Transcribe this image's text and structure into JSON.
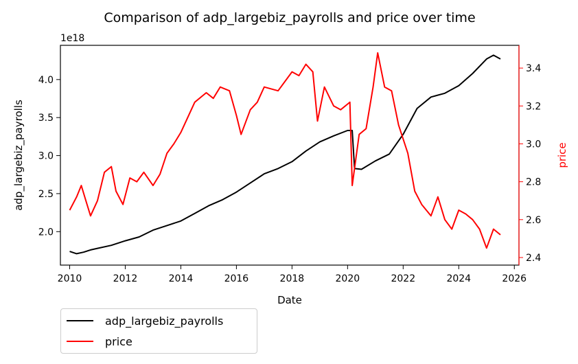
{
  "chart_data": {
    "type": "line",
    "title": "Comparison of adp_largebiz_payrolls and price over time",
    "xlabel": "Date",
    "x_ticks": [
      "2010",
      "2012",
      "2014",
      "2016",
      "2018",
      "2020",
      "2022",
      "2024",
      "2026"
    ],
    "xlim": [
      "2009-09",
      "2026-03"
    ],
    "left_axis": {
      "label": "adp_largebiz_payrolls",
      "offset_text": "1e18",
      "ylim": [
        1.56,
        4.45
      ],
      "ticks": [
        "2.0",
        "2.5",
        "3.0",
        "3.5",
        "4.0"
      ],
      "tick_values": [
        2.0,
        2.5,
        3.0,
        3.5,
        4.0
      ],
      "color": "#000000"
    },
    "right_axis": {
      "label": "price",
      "ylim": [
        2.36,
        3.52
      ],
      "ticks": [
        "2.4",
        "2.6",
        "2.8",
        "3.0",
        "3.2",
        "3.4"
      ],
      "tick_values": [
        2.4,
        2.6,
        2.8,
        3.0,
        3.2,
        3.4
      ],
      "color": "#ff0000"
    },
    "series": [
      {
        "name": "adp_largebiz_payrolls",
        "axis": "left",
        "color": "#000000",
        "points": [
          [
            "2010-01",
            1.74
          ],
          [
            "2010-04",
            1.71
          ],
          [
            "2010-07",
            1.73
          ],
          [
            "2010-10",
            1.76
          ],
          [
            "2011-01",
            1.78
          ],
          [
            "2011-07",
            1.82
          ],
          [
            "2012-01",
            1.88
          ],
          [
            "2012-07",
            1.93
          ],
          [
            "2013-01",
            2.02
          ],
          [
            "2013-07",
            2.08
          ],
          [
            "2014-01",
            2.14
          ],
          [
            "2014-07",
            2.24
          ],
          [
            "2015-01",
            2.34
          ],
          [
            "2015-07",
            2.42
          ],
          [
            "2016-01",
            2.52
          ],
          [
            "2016-07",
            2.64
          ],
          [
            "2017-01",
            2.76
          ],
          [
            "2017-07",
            2.83
          ],
          [
            "2018-01",
            2.92
          ],
          [
            "2018-07",
            3.06
          ],
          [
            "2019-01",
            3.18
          ],
          [
            "2019-07",
            3.26
          ],
          [
            "2020-01",
            3.33
          ],
          [
            "2020-03",
            3.33
          ],
          [
            "2020-04",
            2.83
          ],
          [
            "2020-07",
            2.82
          ],
          [
            "2021-01",
            2.93
          ],
          [
            "2021-07",
            3.02
          ],
          [
            "2022-01",
            3.28
          ],
          [
            "2022-07",
            3.62
          ],
          [
            "2023-01",
            3.77
          ],
          [
            "2023-07",
            3.82
          ],
          [
            "2024-01",
            3.92
          ],
          [
            "2024-07",
            4.08
          ],
          [
            "2025-01",
            4.27
          ],
          [
            "2025-04",
            4.32
          ],
          [
            "2025-07",
            4.27
          ]
        ]
      },
      {
        "name": "price",
        "axis": "right",
        "color": "#ff0000",
        "points": [
          [
            "2010-01",
            2.65
          ],
          [
            "2010-04",
            2.72
          ],
          [
            "2010-06",
            2.78
          ],
          [
            "2010-08",
            2.7
          ],
          [
            "2010-10",
            2.62
          ],
          [
            "2011-01",
            2.7
          ],
          [
            "2011-04",
            2.85
          ],
          [
            "2011-07",
            2.88
          ],
          [
            "2011-09",
            2.75
          ],
          [
            "2011-12",
            2.68
          ],
          [
            "2012-03",
            2.82
          ],
          [
            "2012-06",
            2.8
          ],
          [
            "2012-09",
            2.85
          ],
          [
            "2013-01",
            2.78
          ],
          [
            "2013-04",
            2.84
          ],
          [
            "2013-07",
            2.95
          ],
          [
            "2013-10",
            3.0
          ],
          [
            "2014-01",
            3.06
          ],
          [
            "2014-07",
            3.22
          ],
          [
            "2014-12",
            3.27
          ],
          [
            "2015-03",
            3.24
          ],
          [
            "2015-06",
            3.3
          ],
          [
            "2015-10",
            3.28
          ],
          [
            "2016-01",
            3.15
          ],
          [
            "2016-03",
            3.05
          ],
          [
            "2016-07",
            3.18
          ],
          [
            "2016-10",
            3.22
          ],
          [
            "2017-01",
            3.3
          ],
          [
            "2017-07",
            3.28
          ],
          [
            "2018-01",
            3.38
          ],
          [
            "2018-04",
            3.36
          ],
          [
            "2018-07",
            3.42
          ],
          [
            "2018-10",
            3.38
          ],
          [
            "2018-12",
            3.12
          ],
          [
            "2019-03",
            3.3
          ],
          [
            "2019-07",
            3.2
          ],
          [
            "2019-10",
            3.18
          ],
          [
            "2020-02",
            3.22
          ],
          [
            "2020-03",
            2.78
          ],
          [
            "2020-06",
            3.05
          ],
          [
            "2020-09",
            3.08
          ],
          [
            "2020-12",
            3.3
          ],
          [
            "2021-02",
            3.48
          ],
          [
            "2021-05",
            3.3
          ],
          [
            "2021-08",
            3.28
          ],
          [
            "2021-11",
            3.1
          ],
          [
            "2022-03",
            2.95
          ],
          [
            "2022-06",
            2.75
          ],
          [
            "2022-09",
            2.68
          ],
          [
            "2023-01",
            2.62
          ],
          [
            "2023-04",
            2.72
          ],
          [
            "2023-07",
            2.6
          ],
          [
            "2023-10",
            2.55
          ],
          [
            "2024-01",
            2.65
          ],
          [
            "2024-04",
            2.63
          ],
          [
            "2024-07",
            2.6
          ],
          [
            "2024-10",
            2.55
          ],
          [
            "2025-01",
            2.45
          ],
          [
            "2025-04",
            2.55
          ],
          [
            "2025-07",
            2.52
          ]
        ]
      }
    ],
    "legend": {
      "placement": "below-left"
    }
  }
}
